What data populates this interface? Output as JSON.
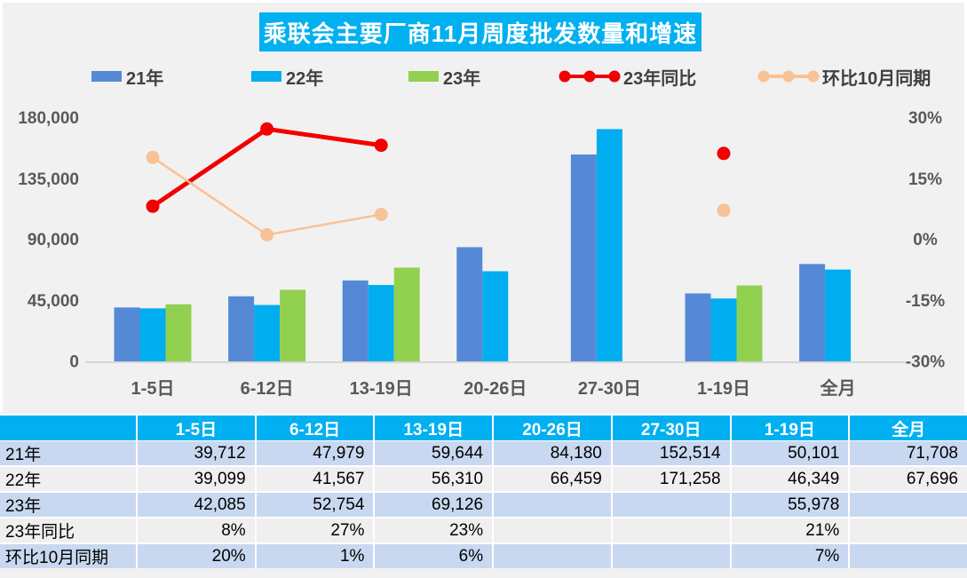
{
  "title": "乘联会主要厂商11月周度批发数量和增速",
  "colors": {
    "title_bg": "#00B0F0",
    "bar_21": "#5589D5",
    "bar_22": "#00AEEF",
    "bar_23": "#92D050",
    "line_yoy": "#F20000",
    "line_mom": "#F8C295",
    "axis_text": "#595959",
    "axis_line": "#D6D6D6",
    "table_header_bg": "#00B0F0",
    "row_stripe_blue": "#C8D8F0",
    "row_stripe_gray": "#EFEFEF",
    "page_bg": "#F1F1F2"
  },
  "legend": [
    {
      "label": "21年",
      "type": "bar",
      "color": "#5589D5"
    },
    {
      "label": "22年",
      "type": "bar",
      "color": "#00AEEF"
    },
    {
      "label": "23年",
      "type": "bar",
      "color": "#92D050"
    },
    {
      "label": "23年同比",
      "type": "line",
      "color": "#F20000"
    },
    {
      "label": "环比10月同期",
      "type": "line",
      "color": "#F8C295"
    }
  ],
  "chart_data": {
    "type": "bar",
    "title": "乘联会主要厂商11月周度批发数量和增速",
    "categories": [
      "1-5日",
      "6-12日",
      "13-19日",
      "20-26日",
      "27-30日",
      "1-19日",
      "全月"
    ],
    "series": [
      {
        "name": "21年",
        "type": "bar",
        "axis": "left",
        "color": "#5589D5",
        "values": [
          39712,
          47979,
          59644,
          84180,
          152514,
          50101,
          71708
        ]
      },
      {
        "name": "22年",
        "type": "bar",
        "axis": "left",
        "color": "#00AEEF",
        "values": [
          39099,
          41567,
          56310,
          66459,
          171258,
          46349,
          67696
        ]
      },
      {
        "name": "23年",
        "type": "bar",
        "axis": "left",
        "color": "#92D050",
        "values": [
          42085,
          52754,
          69126,
          null,
          null,
          55978,
          null
        ]
      },
      {
        "name": "23年同比",
        "type": "line",
        "axis": "right",
        "color": "#F20000",
        "values": [
          8,
          27,
          23,
          null,
          null,
          21,
          null
        ],
        "unit": "%"
      },
      {
        "name": "环比10月同期",
        "type": "line",
        "axis": "right",
        "color": "#F8C295",
        "values": [
          20,
          1,
          6,
          null,
          null,
          7,
          null
        ],
        "unit": "%"
      }
    ],
    "left_axis": {
      "ticks": [
        "180,000",
        "135,000",
        "90,000",
        "45,000",
        "0"
      ],
      "min": 0,
      "max": 180000
    },
    "right_axis": {
      "ticks": [
        "30%",
        "15%",
        "0%",
        "-15%",
        "-30%"
      ],
      "min": -30,
      "max": 30
    },
    "grid": false,
    "legend_position": "top"
  },
  "table": {
    "header": [
      "",
      "1-5日",
      "6-12日",
      "13-19日",
      "20-26日",
      "27-30日",
      "1-19日",
      "全月"
    ],
    "rows": [
      {
        "label": "21年",
        "cells": [
          "39,712",
          "47,979",
          "59,644",
          "84,180",
          "152,514",
          "50,101",
          "71,708"
        ]
      },
      {
        "label": "22年",
        "cells": [
          "39,099",
          "41,567",
          "56,310",
          "66,459",
          "171,258",
          "46,349",
          "67,696"
        ]
      },
      {
        "label": "23年",
        "cells": [
          "42,085",
          "52,754",
          "69,126",
          "",
          "",
          "55,978",
          ""
        ]
      },
      {
        "label": "23年同比",
        "cells": [
          "8%",
          "27%",
          "23%",
          "",
          "",
          "21%",
          ""
        ]
      },
      {
        "label": "环比10月同期",
        "cells": [
          "20%",
          "1%",
          "6%",
          "",
          "",
          "7%",
          ""
        ]
      }
    ]
  }
}
